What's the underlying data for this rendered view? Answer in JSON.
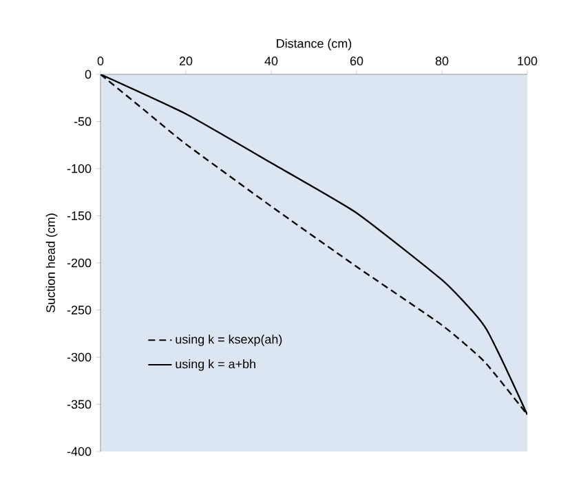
{
  "chart_data": {
    "type": "line",
    "xlabel": "Distance (cm)",
    "ylabel": "Suction head (cm)",
    "xlim": [
      0,
      100
    ],
    "ylim": [
      -400,
      0
    ],
    "xticks": [
      0,
      20,
      40,
      60,
      80,
      100
    ],
    "yticks": [
      -400,
      -350,
      -300,
      -250,
      -200,
      -150,
      -100,
      -50,
      0
    ],
    "grid": false,
    "legend": "bottom left",
    "marker": "none",
    "series": [
      {
        "name": "using k = ksexp(ah)",
        "color": "#000000",
        "line_style": "dashed",
        "x": [
          0,
          10,
          20,
          40,
          60,
          80,
          90,
          100
        ],
        "values": [
          0,
          -37,
          -74,
          -140,
          -204,
          -266,
          -305,
          -361
        ]
      },
      {
        "name": "using k = a+bh",
        "color": "#000000",
        "line_style": "solid",
        "x": [
          0,
          20,
          40,
          60,
          80,
          87.3,
          90.5,
          94.8,
          100
        ],
        "values": [
          0,
          -42,
          -94,
          -147,
          -218,
          -252,
          -271,
          -310,
          -361
        ]
      }
    ]
  }
}
